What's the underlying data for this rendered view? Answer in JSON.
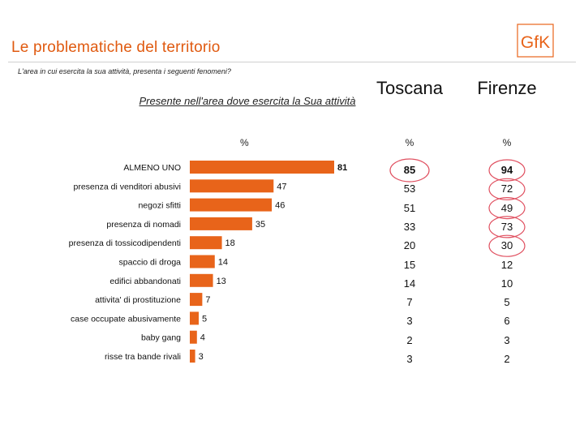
{
  "header": {
    "title": "Le  problematiche del territorio",
    "question": "L'area in cui esercita la sua attività, presenta i seguenti fenomeni?",
    "logo_text": "GfK",
    "logo_icon": "gfk-logo-icon",
    "accent_color": "#e8641a"
  },
  "chart_data": {
    "type": "bar",
    "orientation": "horizontal",
    "title": "Presente nell'area dove esercita la Sua attività",
    "unit": "%",
    "categories": [
      "ALMENO UNO",
      "presenza di venditori abusivi",
      "negozi sfitti",
      "presenza di nomadi",
      "presenza di tossicodipendenti",
      "spaccio di droga",
      "edifici abbandonati",
      "attivita' di prostituzione",
      "case occupate abusivamente",
      "baby gang",
      "risse tra bande rivali"
    ],
    "values": [
      81,
      47,
      46,
      35,
      18,
      14,
      13,
      7,
      5,
      4,
      3
    ],
    "value_labels": [
      "81",
      "47",
      "46",
      "35",
      "18",
      "14",
      "13",
      "7",
      "5",
      "4",
      "3"
    ],
    "xlim": [
      0,
      81
    ],
    "bar_color": "#e8641a",
    "grid": false,
    "legend": "none"
  },
  "table": {
    "columns": [
      {
        "title": "Toscana",
        "unit": "%"
      },
      {
        "title": "Firenze",
        "unit": "%"
      }
    ],
    "rows": [
      {
        "toscana": "85",
        "firenze": "94",
        "bold": true
      },
      {
        "toscana": "53",
        "firenze": "72"
      },
      {
        "toscana": "51",
        "firenze": "49"
      },
      {
        "toscana": "33",
        "firenze": "73"
      },
      {
        "toscana": "20",
        "firenze": "30"
      },
      {
        "toscana": "15",
        "firenze": "12"
      },
      {
        "toscana": "14",
        "firenze": "10"
      },
      {
        "toscana": "7",
        "firenze": "5"
      },
      {
        "toscana": "3",
        "firenze": "6"
      },
      {
        "toscana": "2",
        "firenze": "3"
      },
      {
        "toscana": "3",
        "firenze": "2"
      }
    ],
    "circle_color": "#e05060"
  }
}
